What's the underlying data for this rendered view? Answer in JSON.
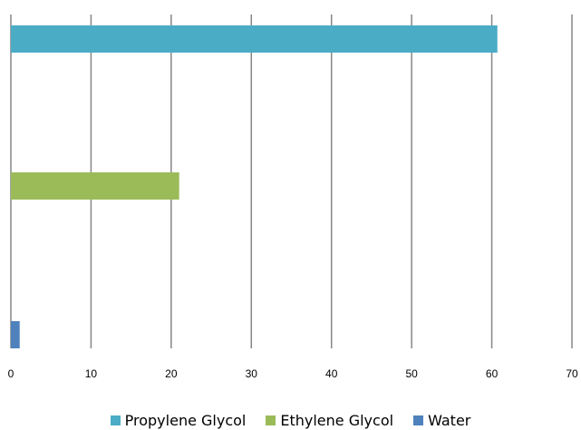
{
  "chart_data": {
    "type": "bar",
    "orientation": "horizontal",
    "title": "",
    "xlabel": "",
    "ylabel": "",
    "xlim": [
      0,
      70
    ],
    "x_ticks": [
      0,
      10,
      20,
      30,
      40,
      50,
      60,
      70
    ],
    "grid": "vertical",
    "legend_position": "bottom",
    "series": [
      {
        "name": "Propylene Glycol",
        "value": 60.7,
        "color": "#4bacc6"
      },
      {
        "name": "Ethylene Glycol",
        "value": 21,
        "color": "#9bbb59"
      },
      {
        "name": "Water",
        "value": 1.1,
        "color": "#4f81bd"
      }
    ]
  }
}
